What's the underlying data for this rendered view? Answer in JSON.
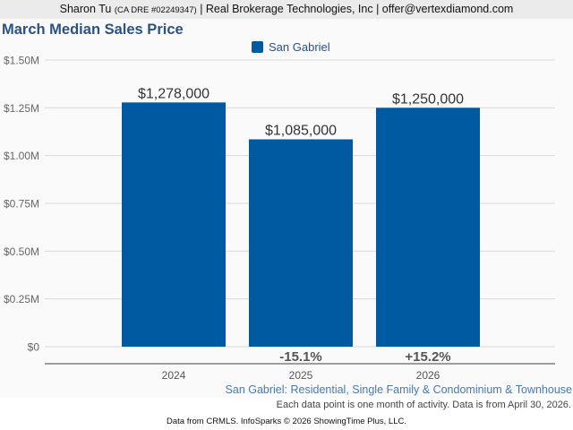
{
  "header": {
    "agent_name": "Sharon Tu",
    "license": "(CA DRE #02249347)",
    "rest": "| Real Brokerage Technologies, Inc | offer@vertexdiamond.com"
  },
  "footer": {
    "subtitle": "San Gabriel: Residential, Single Family & Condominium & Townhouse",
    "note": "Each data point is one month of activity. Data is from April 30, 2026.",
    "credit": "Data from CRMLS. InfoSparks © 2026 ShowingTime Plus, LLC."
  },
  "colors": {
    "bar": "#005aa1",
    "title": "#2a5286",
    "grid": "#d9d9d9",
    "axis": "#666666"
  },
  "chart_data": {
    "type": "bar",
    "title": "March Median Sales Price",
    "xlabel": "",
    "ylabel": "",
    "categories": [
      "2024",
      "2025",
      "2026"
    ],
    "series": [
      {
        "name": "San Gabriel",
        "values": [
          1278000,
          1085000,
          1250000
        ]
      }
    ],
    "data_labels": [
      "$1,278,000",
      "$1,085,000",
      "$1,250,000"
    ],
    "change_labels": [
      "",
      "-15.1%",
      "+15.2%"
    ],
    "ylim": [
      0,
      1500000
    ],
    "yticks": [
      0,
      250000,
      500000,
      750000,
      1000000,
      1250000,
      1500000
    ],
    "ytick_labels": [
      "$0",
      "$0.25M",
      "$0.50M",
      "$0.75M",
      "$1.00M",
      "$1.25M",
      "$1.50M"
    ],
    "grid": true,
    "legend": [
      "San Gabriel"
    ],
    "legend_position": "top-center"
  }
}
